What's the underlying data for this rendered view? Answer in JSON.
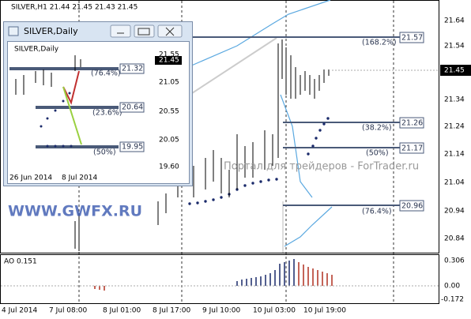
{
  "main_chart": {
    "header": "SILVER,H1 21.44 21.45 21.43 21.45",
    "price_labels": [
      "21.64",
      "21.54",
      "21.34",
      "21.24",
      "21.14",
      "21.04",
      "20.94",
      "20.84"
    ],
    "current_price": "21.45",
    "levels": [
      {
        "percent": "(168.2%)",
        "price": "21.57"
      },
      {
        "percent": "(38.2%)",
        "price": "21.26"
      },
      {
        "percent": "(50%)",
        "price": "21.17"
      },
      {
        "percent": "(76.4%)",
        "price": "20.96"
      }
    ],
    "watermark": "Портал для трейдеров - ForTrader.ru"
  },
  "logo": "WWW.GWFX.RU",
  "indicator": {
    "label": "AO 0.151",
    "scale": [
      "0.306",
      "0.00",
      "-0.172"
    ]
  },
  "time_labels": [
    "4 Jul 2014",
    "7 Jul 08:00",
    "8 Jul 01:00",
    "8 Jul 17:00",
    "9 Jul 10:00",
    "10 Jul 03:00",
    "10 Jul 19:00"
  ],
  "daily_window": {
    "title": "SILVER,Daily",
    "header": "SILVER,Daily",
    "price_labels": [
      "21.55",
      "21.05",
      "20.55",
      "20.05",
      "19.60"
    ],
    "current_price": "21.45",
    "levels": [
      {
        "percent": "(76.4%)",
        "price": "21.32"
      },
      {
        "percent": "(23.6%)",
        "price": "20.64"
      },
      {
        "percent": "(50%)",
        "price": "19.95"
      }
    ],
    "date_labels": [
      "26 Jun 2014",
      "8 Jul 2014"
    ]
  }
}
